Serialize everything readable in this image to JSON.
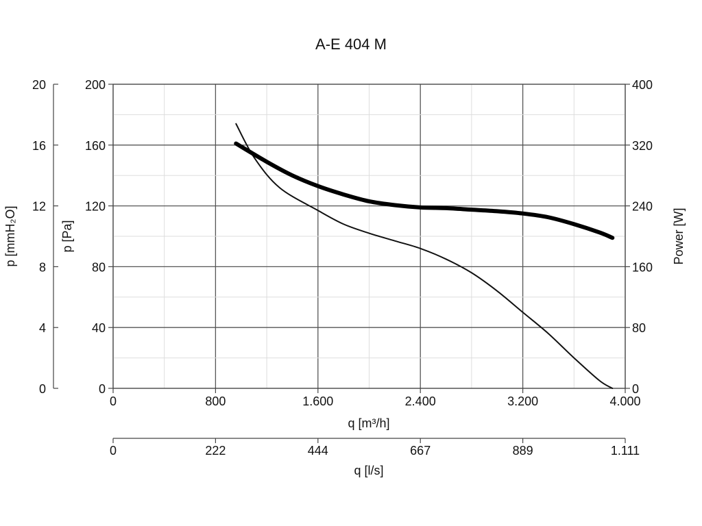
{
  "chart_data": {
    "type": "line",
    "title": "A-E 404 M",
    "xlabel": "q [m³/h]",
    "xlabel_secondary": "q [l/s]",
    "ylabel_left_outer": "p [mmH₂O]",
    "ylabel_left_inner": "p [Pa]",
    "ylabel_right": "Power [W]",
    "xlim": [
      0,
      4000
    ],
    "ylim": [
      0,
      200
    ],
    "ylim_right": [
      0,
      400
    ],
    "ylim_outer": [
      0,
      20
    ],
    "x_tick_values": [
      0,
      800,
      1600,
      2400,
      3200,
      4000
    ],
    "x_tick_labels": [
      "0",
      "800",
      "1.600",
      "2.400",
      "3.200",
      "4.000"
    ],
    "x2_tick_labels": [
      "0",
      "222",
      "444",
      "667",
      "889",
      "1.111"
    ],
    "y_tick_values": [
      0,
      40,
      80,
      120,
      160,
      200
    ],
    "y_tick_labels": [
      "0",
      "40",
      "80",
      "120",
      "160",
      "200"
    ],
    "y_outer_tick_labels": [
      "0",
      "4",
      "8",
      "12",
      "16",
      "20"
    ],
    "y_right_tick_labels": [
      "0",
      "80",
      "160",
      "240",
      "320",
      "400"
    ],
    "grid": true,
    "series": [
      {
        "axis": "left",
        "stroke": "#111111",
        "width": 2,
        "points": [
          [
            960,
            174
          ],
          [
            1100,
            152
          ],
          [
            1300,
            132
          ],
          [
            1600,
            117
          ],
          [
            1800,
            108
          ],
          [
            2000,
            102
          ],
          [
            2200,
            97
          ],
          [
            2400,
            92
          ],
          [
            2600,
            85
          ],
          [
            2800,
            76
          ],
          [
            3000,
            64
          ],
          [
            3200,
            50
          ],
          [
            3400,
            36
          ],
          [
            3600,
            20
          ],
          [
            3800,
            5
          ],
          [
            3900,
            0
          ]
        ]
      },
      {
        "axis": "right",
        "stroke": "#000000",
        "width": 6,
        "points": [
          [
            960,
            322
          ],
          [
            1200,
            298
          ],
          [
            1400,
            280
          ],
          [
            1600,
            266
          ],
          [
            1800,
            255
          ],
          [
            2000,
            246
          ],
          [
            2200,
            241
          ],
          [
            2400,
            238
          ],
          [
            2600,
            237
          ],
          [
            2800,
            235
          ],
          [
            3000,
            233
          ],
          [
            3200,
            230
          ],
          [
            3400,
            225
          ],
          [
            3600,
            216
          ],
          [
            3800,
            205
          ],
          [
            3900,
            198
          ]
        ]
      }
    ]
  }
}
